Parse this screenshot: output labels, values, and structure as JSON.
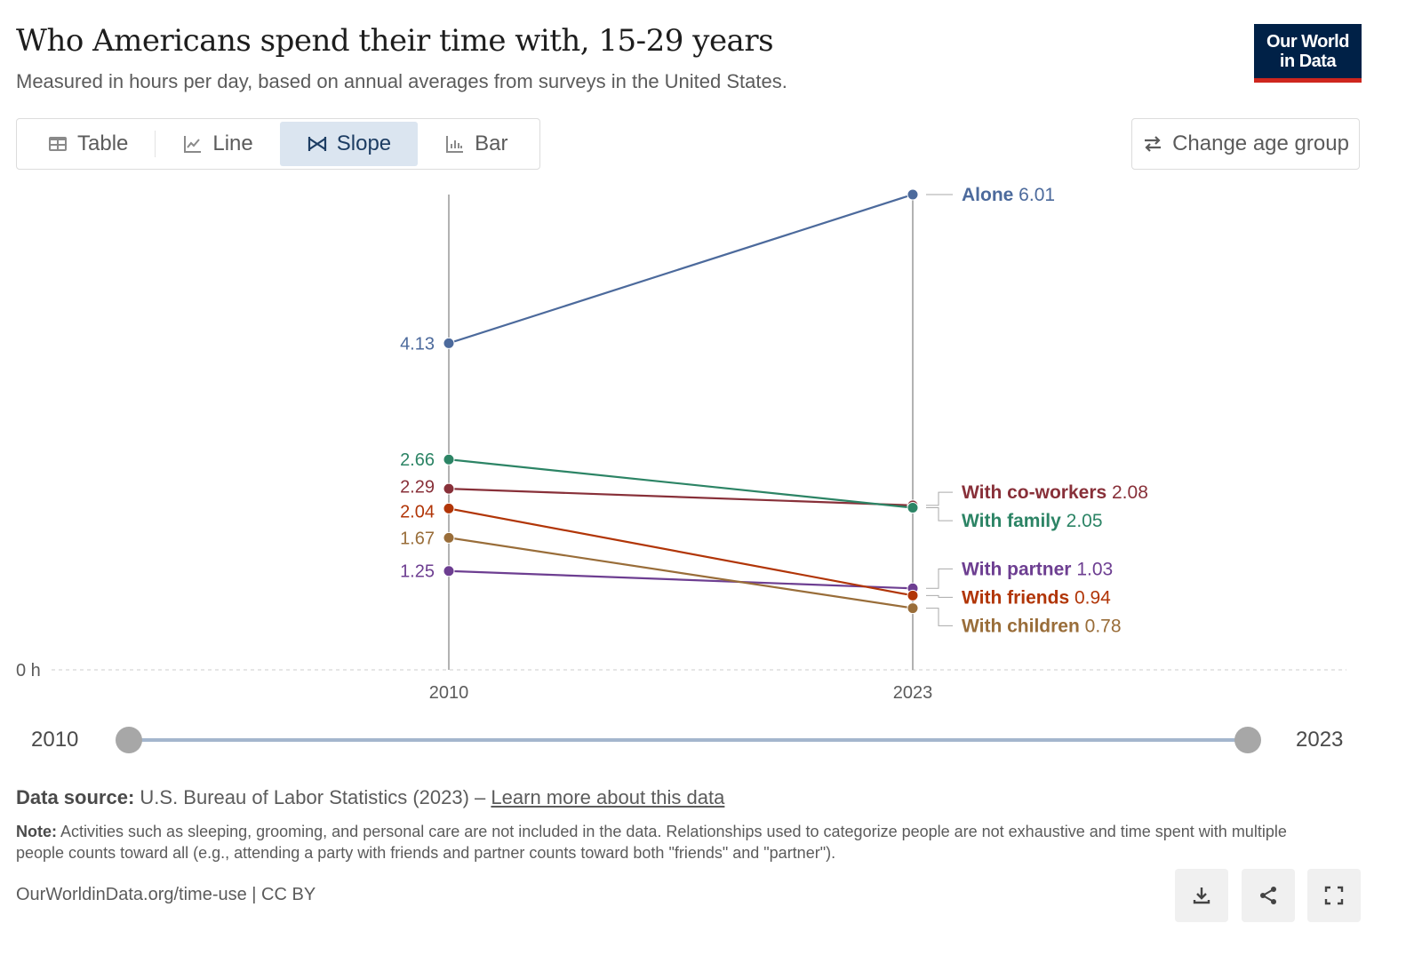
{
  "header": {
    "title": "Who Americans spend their time with, 15-29 years",
    "subtitle": "Measured in hours per day, based on annual averages from surveys in the United States.",
    "logo_text": "Our World in Data"
  },
  "tabs": [
    {
      "label": "Table",
      "icon": "table-icon"
    },
    {
      "label": "Line",
      "icon": "line-chart-icon"
    },
    {
      "label": "Slope",
      "icon": "slope-chart-icon",
      "active": true
    },
    {
      "label": "Bar",
      "icon": "bar-chart-icon"
    }
  ],
  "change_button": {
    "label": "Change age group",
    "icon": "swap-arrows-icon"
  },
  "chart_data": {
    "type": "line",
    "subtype": "slope",
    "title": "Who Americans spend their time with, 15-29 years",
    "ylabel": "hours per day",
    "y_zero_label": "0 h",
    "x": [
      "2010",
      "2023"
    ],
    "ylim": [
      0,
      6.01
    ],
    "grid": false,
    "series": [
      {
        "name": "Alone",
        "values": [
          4.13,
          6.01
        ],
        "labels": [
          "4.13",
          "6.01"
        ],
        "color": "#4c6a9c"
      },
      {
        "name": "With co-workers",
        "values": [
          2.29,
          2.08
        ],
        "labels": [
          "2.29",
          "2.08"
        ],
        "color": "#883039"
      },
      {
        "name": "With family",
        "values": [
          2.66,
          2.05
        ],
        "labels": [
          "2.66",
          "2.05"
        ],
        "color": "#2c8465"
      },
      {
        "name": "With partner",
        "values": [
          1.25,
          1.03
        ],
        "labels": [
          "1.25",
          "1.03"
        ],
        "color": "#6d3e91"
      },
      {
        "name": "With friends",
        "values": [
          2.04,
          0.94
        ],
        "labels": [
          "2.04",
          "0.94"
        ],
        "color": "#b13507"
      },
      {
        "name": "With children",
        "values": [
          1.67,
          0.78
        ],
        "labels": [
          "1.67",
          "0.78"
        ],
        "color": "#996d39"
      }
    ]
  },
  "timeline": {
    "start": "2010",
    "end": "2023"
  },
  "source": {
    "label": "Data source:",
    "text": "U.S. Bureau of Labor Statistics (2023) –",
    "link": "Learn more about this data"
  },
  "note": {
    "label": "Note:",
    "text": "Activities such as sleeping, grooming, and personal care are not included in the data. Relationships used to categorize people are not exhaustive and time spent with multiple people counts toward all (e.g., attending a party with friends and partner counts toward both \"friends\" and \"partner\")."
  },
  "footer": {
    "text": "OurWorldinData.org/time-use | CC BY"
  },
  "actions": [
    {
      "name": "download-button",
      "icon": "download-icon"
    },
    {
      "name": "share-button",
      "icon": "share-icon"
    },
    {
      "name": "fullscreen-button",
      "icon": "fullscreen-icon"
    }
  ]
}
